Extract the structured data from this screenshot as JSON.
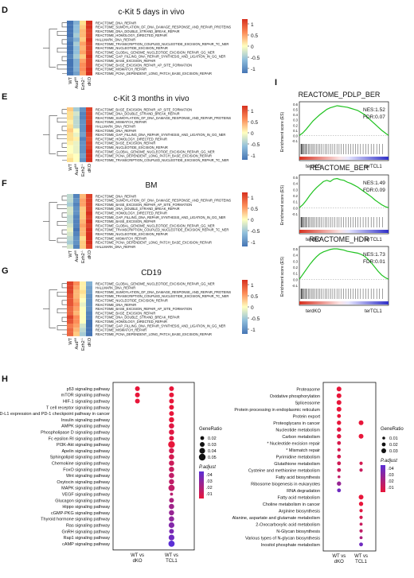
{
  "colors": {
    "hot": "#d7301f",
    "warm": "#fc8d59",
    "pale": "#fee090",
    "cream": "#ffffbf",
    "cool": "#91bfdb",
    "cold": "#4575b4",
    "dot_hi": "#e8163a",
    "dot_lo": "#5b2fd6"
  },
  "heatmaps": [
    {
      "panel": "D",
      "title": "c-Kit 5 days in vivo",
      "pathways": [
        "REACTOME_DNA_REPAIR",
        "REACTOME_SUMOYLATION_OF_DNA_DAMAGE_RESPONSE_AND_REPAIR_PROTEINS",
        "REACTOME_DNA_DOUBLE_STRAND_BREAK_REPAIR",
        "REACTOME_HOMOLOGY_DIRECTED_REPAIR",
        "HALLMARK_DNA_REPAIR",
        "REACTOME_TRANSCRIPTION_COUPLED_NUCLEOTIDE_EXCISION_REPAIR_TC_NER",
        "REACTOME_NUCLEOTIDE_EXCISION_REPAIR",
        "REACTOME_GLOBAL_GENOME_NUCLEOTIDE_EXCISION_REPAIR_GG_NER",
        "REACTOME_GAP_FILLING_DNA_REPAIR_SYNTHESIS_AND_LIGATION_IN_GG_NER",
        "REACTOME_BASE_EXCISION_REPAIR",
        "REACTOME_BASE_EXCISION_REPAIR_AP_SITE_FORMATION",
        "REACTOME_MISMATCH_REPAIR",
        "REACTOME_PCNA_DEPENDENT_LONG_PATCH_BASE_EXCISION_REPAIR"
      ],
      "values": [
        [
          -1,
          -0.6,
          0.2,
          1.1
        ],
        [
          -1,
          -0.5,
          0.3,
          1.1
        ],
        [
          -1,
          -0.5,
          0.4,
          1
        ],
        [
          -1,
          -0.4,
          0.4,
          1
        ],
        [
          -0.9,
          -0.6,
          0.3,
          1.1
        ],
        [
          -1,
          -0.4,
          0.5,
          1
        ],
        [
          -1,
          -0.5,
          0.4,
          1
        ],
        [
          -1,
          -0.5,
          0.5,
          1
        ],
        [
          -0.9,
          -0.4,
          0.3,
          1.1
        ],
        [
          -1,
          -0.6,
          0.5,
          1
        ],
        [
          -1,
          -0.6,
          0.6,
          1
        ],
        [
          -1,
          -0.6,
          0.6,
          1.1
        ],
        [
          -1,
          -0.7,
          0.5,
          1.2
        ]
      ]
    },
    {
      "panel": "E",
      "title": "c-Kit 3 months in vivo",
      "pathways": [
        "REACTOME_BASE_EXCISION_REPAIR_AP_SITE_FORMATION",
        "REACTOME_DNA_DOUBLE_STRAND_BREAK_REPAIR",
        "REACTOME_SUMOYLATION_OF_DNA_DAMAGE_RESPONSE_AND_REPAIR_PROTEINS",
        "REACTOME_MISMATCH_REPAIR",
        "HALLMARK_DNA_REPAIR",
        "REACTOME_DNA_REPAIR",
        "REACTOME_GAP_FILLING_DNA_REPAIR_SYNTHESIS_AND_LIGATION_IN_GG_NER",
        "REACTOME_HOMOLOGY_DIRECTED_REPAIR",
        "REACTOME_BASE_EXCISION_REPAIR",
        "REACTOME_NUCLEOTIDE_EXCISION_REPAIR",
        "REACTOME_GLOBAL_GENOME_NUCLEOTIDE_EXCISION_REPAIR_GG_NER",
        "REACTOME_PCNA_DEPENDENT_LONG_PATCH_BASE_EXCISION_REPAIR",
        "REACTOME_TRANSCRIPTION_COUPLED_NUCLEOTIDE_EXCISION_REPAIR_TC_NER"
      ],
      "values": [
        [
          0.3,
          -0.4,
          -0.8,
          1
        ],
        [
          0.2,
          -0.2,
          -0.9,
          1
        ],
        [
          0.2,
          -0.3,
          -0.9,
          1
        ],
        [
          0.1,
          -0.3,
          -0.8,
          1
        ],
        [
          0.2,
          -0.3,
          -0.8,
          1.1
        ],
        [
          0.3,
          0,
          -0.8,
          1.1
        ],
        [
          0.2,
          -0.1,
          -0.7,
          1
        ],
        [
          0.2,
          0.1,
          -0.9,
          0.9
        ],
        [
          0.1,
          -0.1,
          -0.8,
          1
        ],
        [
          0,
          -0.1,
          -0.8,
          1
        ],
        [
          0,
          -0.1,
          -0.8,
          1.1
        ],
        [
          0.1,
          0,
          -0.7,
          1.2
        ],
        [
          0.2,
          0,
          -0.8,
          1.1
        ]
      ]
    },
    {
      "panel": "F",
      "title": "BM",
      "pathways": [
        "REACTOME_DNA_REPAIR",
        "REACTOME_SUMOYLATION_OF_DNA_DAMAGE_RESPONSE_AND_REPAIR_PROTEINS",
        "REACTOME_BASE_EXCISION_REPAIR_AP_SITE_FORMATION",
        "REACTOME_DNA_DOUBLE_STRAND_BREAK_REPAIR",
        "REACTOME_HOMOLOGY_DIRECTED_REPAIR",
        "REACTOME_GAP_FILLING_DNA_REPAIR_SYNTHESIS_AND_LIGATION_IN_GG_NER",
        "REACTOME_BASE_EXCISION_REPAIR",
        "REACTOME_GLOBAL_GENOME_NUCLEOTIDE_EXCISION_REPAIR_GG_NER",
        "REACTOME_TRANSCRIPTION_COUPLED_NUCLEOTIDE_EXCISION_REPAIR_TC_NER",
        "REACTOME_NUCLEOTIDE_EXCISION_REPAIR",
        "REACTOME_MISMATCH_REPAIR",
        "REACTOME_PCNA_DEPENDENT_LONG_PATCH_BASE_EXCISION_REPAIR",
        "HALLMARK_DNA_REPAIR"
      ],
      "values": [
        [
          -0.3,
          -0.9,
          0.4,
          1
        ],
        [
          -0.3,
          -0.8,
          0.5,
          1
        ],
        [
          -0.4,
          -0.9,
          0.5,
          1
        ],
        [
          -0.2,
          -0.8,
          0.3,
          1
        ],
        [
          -0.2,
          -0.8,
          0.3,
          1.1
        ],
        [
          -0.3,
          -0.9,
          0.3,
          1
        ],
        [
          -0.3,
          -0.9,
          0.4,
          1.1
        ],
        [
          -0.2,
          -0.9,
          0.5,
          1
        ],
        [
          -0.1,
          -1,
          0.4,
          1.1
        ],
        [
          -0.2,
          -0.9,
          0.4,
          1.1
        ],
        [
          -0.3,
          -0.8,
          0.2,
          1.1
        ],
        [
          -0.4,
          -0.8,
          0.3,
          1.1
        ],
        [
          -0.2,
          -0.9,
          0.3,
          1
        ]
      ]
    },
    {
      "panel": "G",
      "title": "CD19",
      "pathways": [
        "REACTOME_GLOBAL_GENOME_NUCLEOTIDE_EXCISION_REPAIR_GG_NER",
        "HALLMARK_DNA_REPAIR",
        "REACTOME_SUMOYLATION_OF_DNA_DAMAGE_RESPONSE_AND_REPAIR_PROTEINS",
        "REACTOME_TRANSCRIPTION_COUPLED_NUCLEOTIDE_EXCISION_REPAIR_TC_NER",
        "REACTOME_NUCLEOTIDE_EXCISION_REPAIR",
        "REACTOME_DNA_REPAIR",
        "REACTOME_BASE_EXCISION_REPAIR_AP_SITE_FORMATION",
        "REACTOME_BASE_EXCISION_REPAIR",
        "REACTOME_DNA_DOUBLE_STRAND_BREAK_REPAIR",
        "REACTOME_HOMOLOGY_DIRECTED_REPAIR",
        "REACTOME_GAP_FILLING_DNA_REPAIR_SYNTHESIS_AND_LIGATION_IN_GG_NER",
        "REACTOME_MISMATCH_REPAIR",
        "REACTOME_PCNA_DEPENDENT_LONG_PATCH_BASE_EXCISION_REPAIR"
      ],
      "values": [
        [
          1,
          0.6,
          0.1,
          -0.6
        ],
        [
          1,
          0.5,
          0.1,
          -0.7
        ],
        [
          1,
          0.4,
          0.2,
          -0.7
        ],
        [
          0.9,
          0.4,
          0.1,
          -0.8
        ],
        [
          0.9,
          0.5,
          0,
          -0.8
        ],
        [
          0.9,
          0.6,
          -0.1,
          -0.8
        ],
        [
          0.8,
          0.5,
          0,
          -0.8
        ],
        [
          0.8,
          0.4,
          0,
          -0.9
        ],
        [
          1,
          0.6,
          0,
          -0.9
        ],
        [
          0.9,
          0.6,
          0,
          -1
        ],
        [
          0.7,
          0.5,
          -0.2,
          -1
        ],
        [
          0.8,
          0.4,
          -0.3,
          -1.1
        ],
        [
          0.8,
          0.3,
          -0.4,
          -1.1
        ]
      ]
    }
  ],
  "genotypes": [
    [
      "WT",
      ""
    ],
    [
      "Aud",
      "fl/fl"
    ],
    [
      "Ezh2",
      "-/-"
    ],
    [
      "dKO",
      ""
    ]
  ],
  "colorbar_ticks": [
    "1",
    "0.5",
    "0",
    "-0.5",
    "-1"
  ],
  "gsea_panel_label": "I",
  "gsea": [
    {
      "title": "REACTOME_PDLP_BER",
      "nes": "NES:1.52",
      "fdr": "FDR:0.07",
      "ylabel": "Enrichment score (ES)",
      "yticks": [
        "0.6",
        "0.5",
        "0.4",
        "0.3",
        "0.2",
        "0.1",
        "0.0",
        "-0.1"
      ],
      "left": "terdKO",
      "right": "terTCL1",
      "es": [
        0,
        0.05,
        0.12,
        0.2,
        0.28,
        0.34,
        0.4,
        0.45,
        0.5,
        0.53,
        0.55,
        0.57,
        0.56,
        0.55,
        0.54,
        0.52,
        0.5,
        0.48,
        0.44,
        0.4,
        0.34,
        0.28,
        0.22,
        0.16,
        0.1,
        0.05,
        0
      ]
    },
    {
      "title": "REACTOME_BER",
      "nes": "NES:1.49",
      "fdr": "FDR:0.09",
      "ylabel": "Enrichment score (ES)",
      "yticks": [
        "0.5",
        "0.4",
        "0.3",
        "0.2",
        "0.1",
        "0.0",
        "-0.1"
      ],
      "left": "terdKO",
      "right": "terTCL1",
      "es": [
        0,
        0.05,
        0.12,
        0.2,
        0.27,
        0.33,
        0.38,
        0.43,
        0.45,
        0.43,
        0.47,
        0.48,
        0.46,
        0.45,
        0.42,
        0.4,
        0.37,
        0.34,
        0.3,
        0.26,
        0.22,
        0.18,
        0.13,
        0.09,
        0.05,
        0.02,
        0
      ]
    },
    {
      "title": "REACTOME_HDR",
      "nes": "NES:1.73",
      "fdr": "FDR:0.01",
      "ylabel": "Enrichment score (ES)",
      "yticks": [
        "0.5",
        "0.4",
        "0.3",
        "0.2",
        "0.1",
        "0.0",
        "-0.1"
      ],
      "left": "terdKO",
      "right": "terTCL1",
      "es": [
        0,
        0.08,
        0.16,
        0.24,
        0.31,
        0.37,
        0.42,
        0.45,
        0.47,
        0.49,
        0.5,
        0.5,
        0.49,
        0.48,
        0.46,
        0.45,
        0.44,
        0.43,
        0.41,
        0.38,
        0.33,
        0.27,
        0.2,
        0.13,
        0.07,
        0.03,
        0
      ]
    }
  ],
  "panel_h_label": "H",
  "dotplot_left": {
    "pathways": [
      "p53 signaling pathway",
      "mTOR signaling pathway",
      "HIF-1 signaling pathway",
      "T cell receptor signaling pathway",
      "PD-L1 expression and PD-1 checkpoint pathway in cancer",
      "Insulin signaling pathway",
      "AMPK signaling pathway",
      "Phospholipase D signaling pathway",
      "Fc epsilon RI signaling pathway",
      "PI3K-Akt signaling pathway",
      "Apelin signaling pathway",
      "Sphingolipid signaling pathway",
      "Chemokine signaling pathway",
      "FoxO signaling pathway",
      "Wnt signaling pathway",
      "Oxytocin signaling pathway",
      "MAPK signaling pathway",
      "VEGF signaling pathway",
      "Glucagon signaling pathway",
      "Hippo signaling pathway",
      "cGMP-PKG signaling pathway",
      "Thyroid hormone signaling pathway",
      "Ras signaling pathway",
      "GnRH signaling pathway",
      "Rap1 signaling pathway",
      "cAMP signaling pathway"
    ],
    "dots": [
      [
        {
          "ratio": 0.03,
          "padj": 0.01
        },
        {
          "ratio": 0.03,
          "padj": 0.01
        }
      ],
      [
        {
          "ratio": 0.03,
          "padj": 0.01
        },
        {
          "ratio": 0.03,
          "padj": 0.01
        }
      ],
      [
        {
          "ratio": 0.03,
          "padj": 0.01
        },
        {
          "ratio": 0.03,
          "padj": 0.01
        }
      ],
      [
        null,
        {
          "ratio": 0.03,
          "padj": 0.01
        }
      ],
      [
        null,
        {
          "ratio": 0.03,
          "padj": 0.01
        }
      ],
      [
        null,
        {
          "ratio": 0.035,
          "padj": 0.01
        }
      ],
      [
        null,
        {
          "ratio": 0.035,
          "padj": 0.012
        }
      ],
      [
        null,
        {
          "ratio": 0.035,
          "padj": 0.012
        }
      ],
      [
        null,
        {
          "ratio": 0.03,
          "padj": 0.012
        }
      ],
      [
        null,
        {
          "ratio": 0.05,
          "padj": 0.01
        }
      ],
      [
        null,
        {
          "ratio": 0.035,
          "padj": 0.015
        }
      ],
      [
        null,
        {
          "ratio": 0.035,
          "padj": 0.015
        }
      ],
      [
        null,
        {
          "ratio": 0.035,
          "padj": 0.017
        }
      ],
      [
        null,
        {
          "ratio": 0.035,
          "padj": 0.018
        }
      ],
      [
        null,
        {
          "ratio": 0.035,
          "padj": 0.02
        }
      ],
      [
        null,
        {
          "ratio": 0.035,
          "padj": 0.02
        }
      ],
      [
        null,
        {
          "ratio": 0.045,
          "padj": 0.02
        }
      ],
      [
        null,
        {
          "ratio": 0.012,
          "padj": 0.022
        }
      ],
      [
        null,
        {
          "ratio": 0.03,
          "padj": 0.025
        }
      ],
      [
        null,
        {
          "ratio": 0.035,
          "padj": 0.028
        }
      ],
      [
        null,
        {
          "ratio": 0.035,
          "padj": 0.03
        }
      ],
      [
        null,
        {
          "ratio": 0.035,
          "padj": 0.032
        }
      ],
      [
        null,
        {
          "ratio": 0.04,
          "padj": 0.035
        }
      ],
      [
        null,
        {
          "ratio": 0.03,
          "padj": 0.037
        }
      ],
      [
        null,
        {
          "ratio": 0.04,
          "padj": 0.04
        }
      ],
      [
        null,
        {
          "ratio": 0.045,
          "padj": 0.045
        }
      ]
    ],
    "xlabels": [
      [
        "WT vs",
        "dKO"
      ],
      [
        "WT vs",
        "TCL1"
      ]
    ],
    "legend_ratio_title": "GeneRatio",
    "legend_ratio": [
      0.02,
      0.03,
      0.04,
      0.05
    ],
    "legend_ratio_labels": [
      "0.02",
      "0.03",
      "0.04",
      "0.05"
    ],
    "legend_padj_title": "P.adjust",
    "legend_padj_labels": [
      ".04",
      ".03",
      ".02",
      ".01"
    ]
  },
  "dotplot_right": {
    "pathways": [
      "Proteasome",
      "Oxidative phosphorylation",
      "Spliceosome",
      "Protein processing in endoplasmic reticulum",
      "Protein export",
      "Proteoglycans in cancer",
      "Nucleotide metabolism",
      "Carbon metabolism",
      "* Nucleotide excision repair",
      "* Mismatch repair",
      "Pyrimidine metabolism",
      "Glutathione metabolism",
      "Cysteine and methionine metabolism",
      "Fatty acid biosynthesis",
      "Ribosome biogenesis in eukaryotes",
      "RNA degradation",
      "Fatty acid metabolism",
      "Choline metabolism in cancer",
      "Arginine biosynthesis",
      "Alanine, aspartate and glutamate metabolism",
      "2-Oxocarboxylic acid metabolism",
      "N-Glycan biosynthesis",
      "Various types of N-glycan biosynthesis",
      "Inositol phosphate metabolism"
    ],
    "dots": [
      [
        {
          "ratio": 0.03,
          "padj": 0.01
        },
        null
      ],
      [
        {
          "ratio": 0.03,
          "padj": 0.01
        },
        null
      ],
      [
        {
          "ratio": 0.03,
          "padj": 0.01
        },
        null
      ],
      [
        {
          "ratio": 0.03,
          "padj": 0.01
        },
        null
      ],
      [
        {
          "ratio": 0.02,
          "padj": 0.01
        },
        null
      ],
      [
        {
          "ratio": 0.025,
          "padj": 0.01
        },
        {
          "ratio": 0.03,
          "padj": 0.01
        }
      ],
      [
        {
          "ratio": 0.025,
          "padj": 0.012
        },
        null
      ],
      [
        {
          "ratio": 0.025,
          "padj": 0.012
        },
        {
          "ratio": 0.03,
          "padj": 0.01
        }
      ],
      [
        {
          "ratio": 0.02,
          "padj": 0.014
        },
        null
      ],
      [
        {
          "ratio": 0.015,
          "padj": 0.015
        },
        null
      ],
      [
        {
          "ratio": 0.02,
          "padj": 0.015
        },
        null
      ],
      [
        {
          "ratio": 0.02,
          "padj": 0.016
        },
        {
          "ratio": 0.015,
          "padj": 0.015
        }
      ],
      [
        {
          "ratio": 0.02,
          "padj": 0.018
        },
        {
          "ratio": 0.015,
          "padj": 0.018
        }
      ],
      [
        {
          "ratio": 0.01,
          "padj": 0.02
        },
        null
      ],
      [
        {
          "ratio": 0.025,
          "padj": 0.03
        },
        null
      ],
      [
        {
          "ratio": 0.02,
          "padj": 0.04
        },
        null
      ],
      [
        null,
        {
          "ratio": 0.03,
          "padj": 0.01
        }
      ],
      [
        null,
        {
          "ratio": 0.025,
          "padj": 0.01
        }
      ],
      [
        null,
        {
          "ratio": 0.015,
          "padj": 0.012
        }
      ],
      [
        null,
        {
          "ratio": 0.015,
          "padj": 0.015
        }
      ],
      [
        null,
        {
          "ratio": 0.012,
          "padj": 0.018
        }
      ],
      [
        null,
        {
          "ratio": 0.015,
          "padj": 0.02
        }
      ],
      [
        null,
        {
          "ratio": 0.012,
          "padj": 0.025
        }
      ],
      [
        null,
        {
          "ratio": 0.02,
          "padj": 0.04
        }
      ]
    ],
    "xlabels": [
      [
        "WT vs",
        "dKO"
      ],
      [
        "WT vs",
        "TCL1"
      ]
    ],
    "legend_ratio_title": "GeneRatio",
    "legend_ratio": [
      0.01,
      0.02,
      0.03
    ],
    "legend_ratio_labels": [
      "0.01",
      "0.02",
      "0.03"
    ],
    "legend_padj_title": "P.adjust",
    "legend_padj_labels": [
      ".04",
      ".03",
      ".02",
      ".01"
    ]
  }
}
